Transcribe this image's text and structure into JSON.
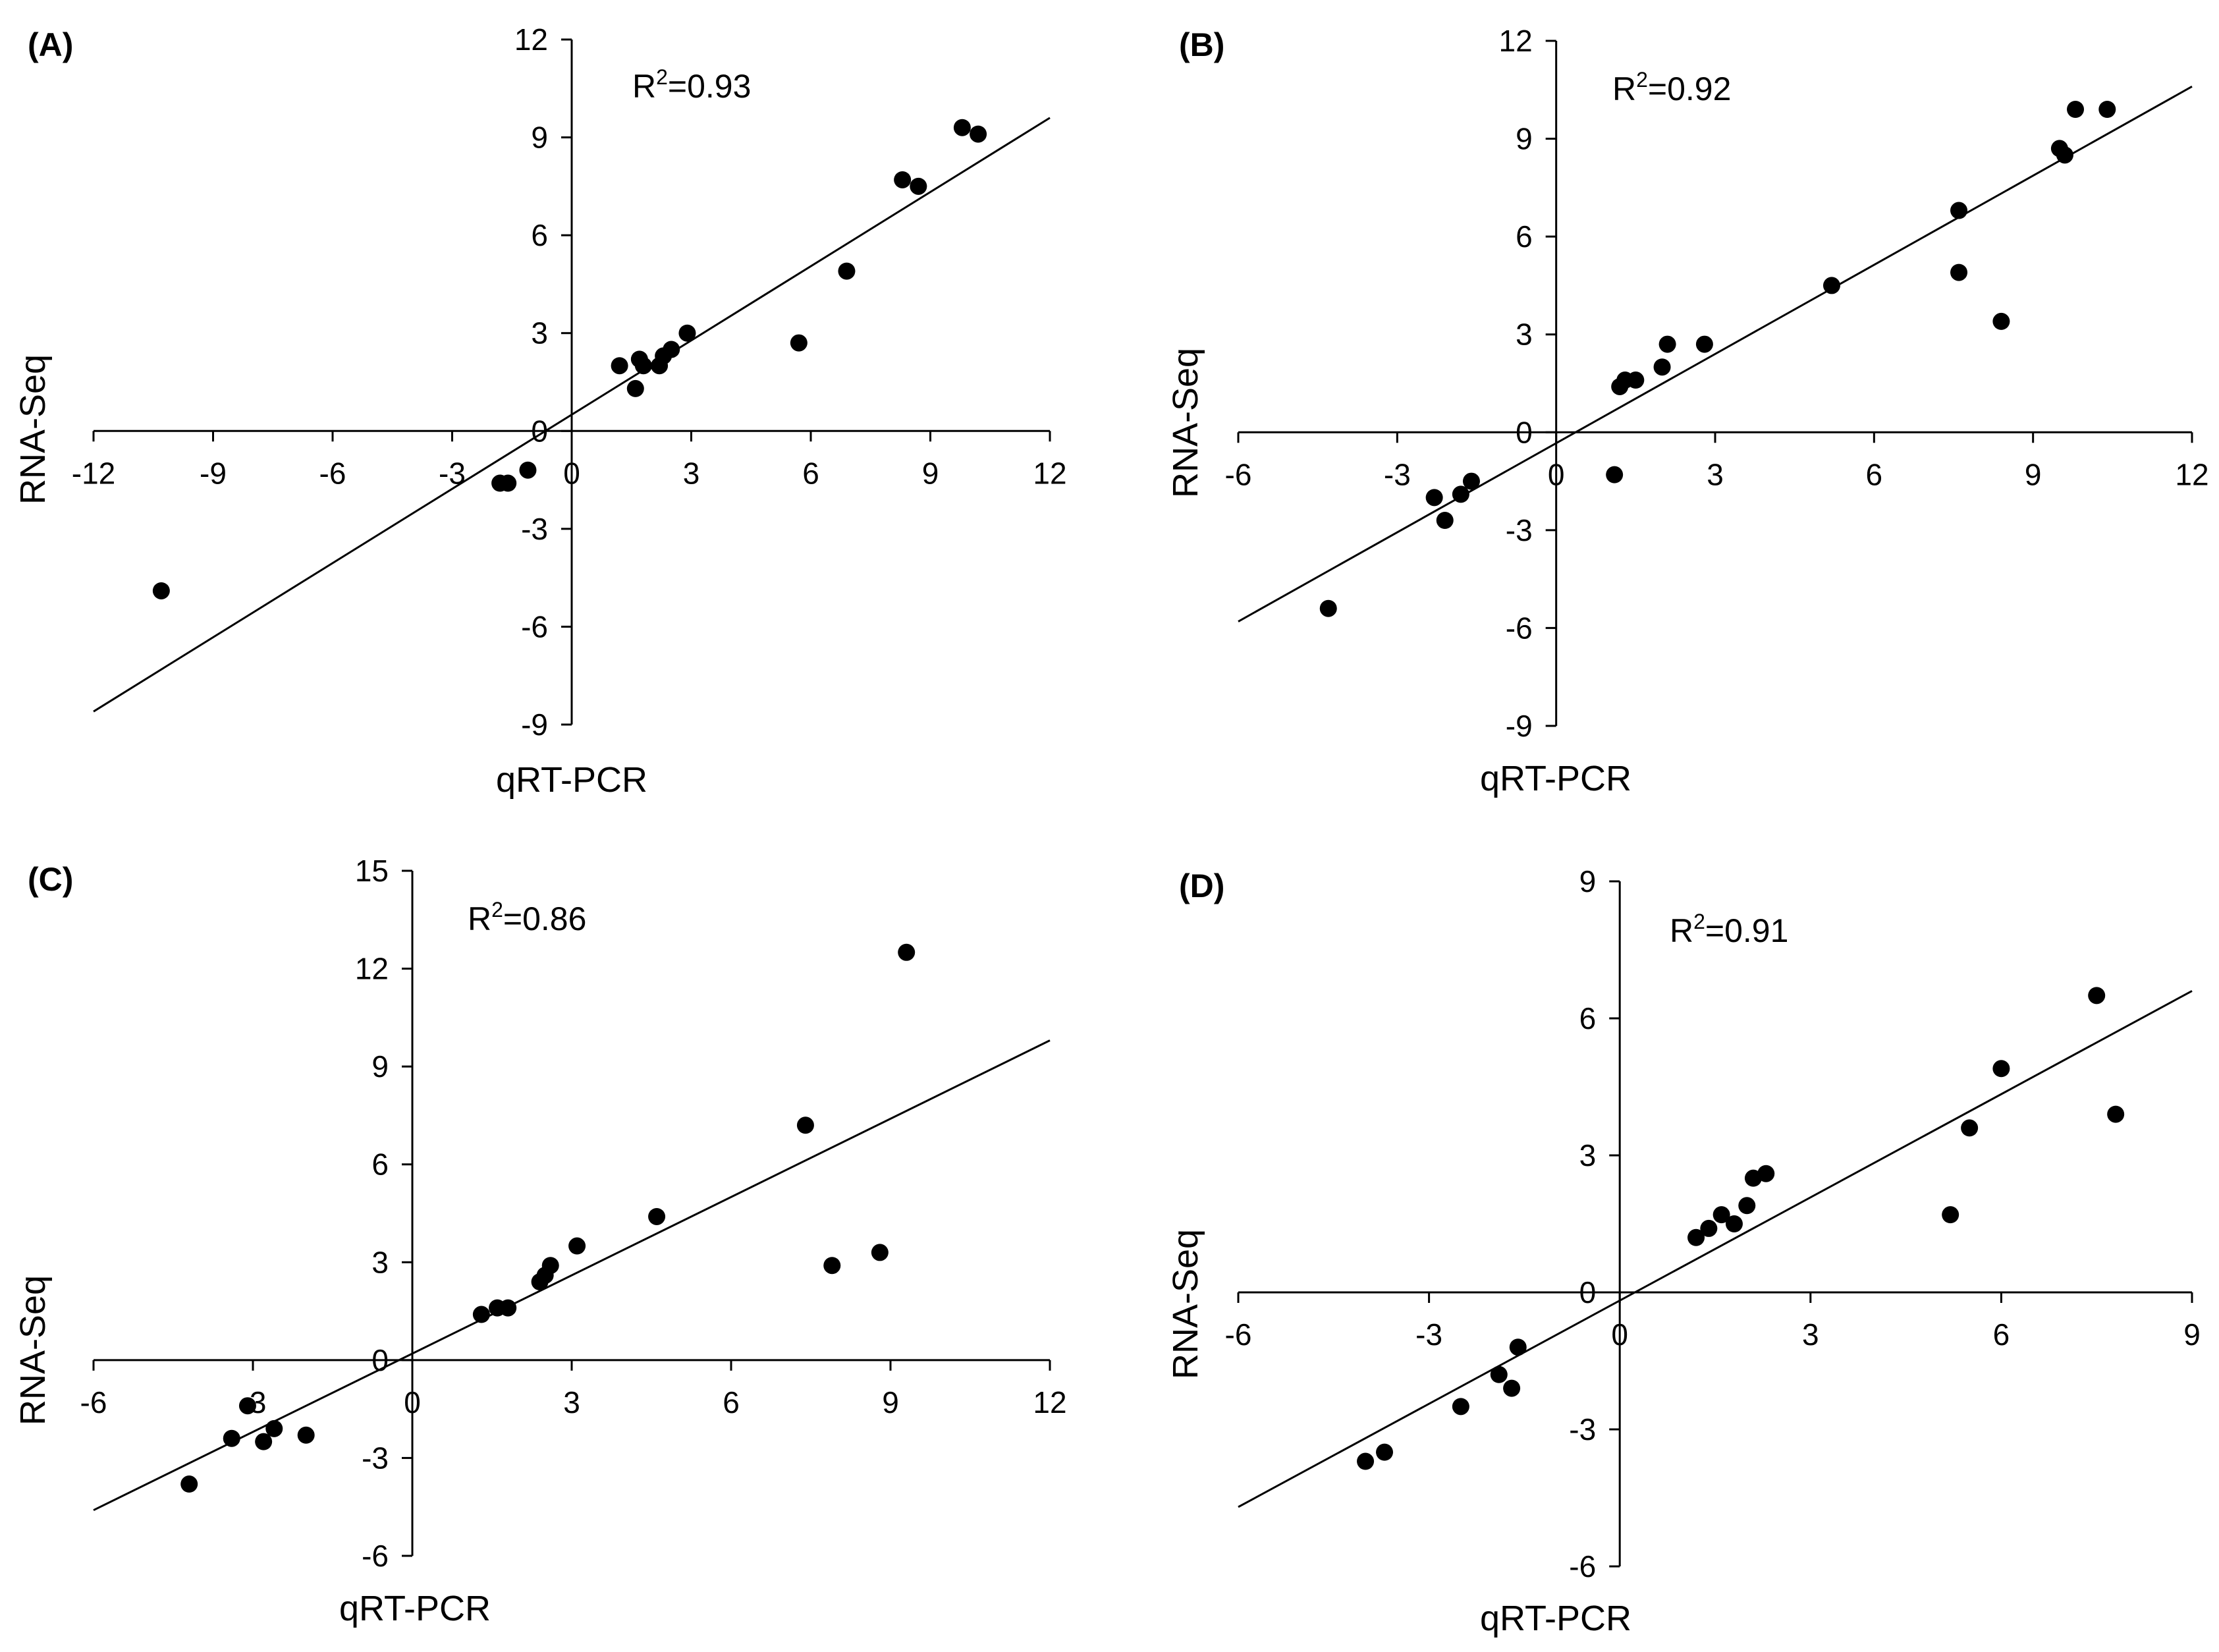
{
  "chart_data": [
    {
      "panel": "(A)",
      "type": "scatter",
      "annotation": {
        "prefix": "R",
        "sup": "2",
        "value": "=0.93"
      },
      "xlabel": "qRT-PCR",
      "ylabel": "RNA-Seq",
      "xlim": [
        -12,
        12
      ],
      "ylim": [
        -9,
        12
      ],
      "xticks": [
        -12,
        -9,
        -6,
        -3,
        0,
        3,
        6,
        9,
        12
      ],
      "yticks": [
        -9,
        -6,
        -3,
        0,
        3,
        6,
        9,
        12
      ],
      "trendline": [
        [
          -12,
          -8.6
        ],
        [
          12,
          9.6
        ]
      ],
      "points": [
        [
          -10.3,
          -4.9
        ],
        [
          -1.8,
          -1.6
        ],
        [
          -1.6,
          -1.6
        ],
        [
          -1.1,
          -1.2
        ],
        [
          1.2,
          2.0
        ],
        [
          1.6,
          1.3
        ],
        [
          1.7,
          2.2
        ],
        [
          1.8,
          2.0
        ],
        [
          2.2,
          2.0
        ],
        [
          2.3,
          2.3
        ],
        [
          2.5,
          2.5
        ],
        [
          2.9,
          3.0
        ],
        [
          5.7,
          2.7
        ],
        [
          6.9,
          4.9
        ],
        [
          8.3,
          7.7
        ],
        [
          8.7,
          7.5
        ],
        [
          9.8,
          9.3
        ],
        [
          10.2,
          9.1
        ]
      ]
    },
    {
      "panel": "(B)",
      "type": "scatter",
      "annotation": {
        "prefix": "R",
        "sup": "2",
        "value": "=0.92"
      },
      "xlabel": "qRT-PCR",
      "ylabel": "RNA-Seq",
      "xlim": [
        -6,
        12
      ],
      "ylim": [
        -9,
        12
      ],
      "xticks": [
        -6,
        -3,
        0,
        3,
        6,
        9,
        12
      ],
      "yticks": [
        -9,
        -6,
        -3,
        0,
        3,
        6,
        9,
        12
      ],
      "trendline": [
        [
          -6,
          -5.8
        ],
        [
          12,
          10.6
        ]
      ],
      "points": [
        [
          -4.3,
          -5.4
        ],
        [
          -2.3,
          -2.0
        ],
        [
          -2.1,
          -2.7
        ],
        [
          -1.8,
          -1.9
        ],
        [
          -1.6,
          -1.5
        ],
        [
          1.1,
          -1.3
        ],
        [
          1.2,
          1.4
        ],
        [
          1.3,
          1.6
        ],
        [
          1.5,
          1.6
        ],
        [
          2.0,
          2.0
        ],
        [
          2.1,
          2.7
        ],
        [
          2.8,
          2.7
        ],
        [
          5.2,
          4.5
        ],
        [
          7.6,
          6.8
        ],
        [
          7.6,
          4.9
        ],
        [
          8.4,
          3.4
        ],
        [
          9.5,
          8.7
        ],
        [
          9.6,
          8.5
        ],
        [
          9.8,
          9.9
        ],
        [
          10.4,
          9.9
        ]
      ]
    },
    {
      "panel": "(C)",
      "type": "scatter",
      "annotation": {
        "prefix": "R",
        "sup": "2",
        "value": "=0.86"
      },
      "xlabel": "qRT-PCR",
      "ylabel": "RNA-Seq",
      "xlim": [
        -6,
        12
      ],
      "ylim": [
        -6,
        15
      ],
      "xticks": [
        -6,
        -3,
        0,
        3,
        6,
        9,
        12
      ],
      "yticks": [
        -6,
        -3,
        0,
        3,
        6,
        9,
        12,
        15
      ],
      "trendline": [
        [
          -6,
          -4.6
        ],
        [
          12,
          9.8
        ]
      ],
      "points": [
        [
          -4.2,
          -3.8
        ],
        [
          -3.4,
          -2.4
        ],
        [
          -3.1,
          -1.4
        ],
        [
          -2.8,
          -2.5
        ],
        [
          -2.6,
          -2.1
        ],
        [
          -2.0,
          -2.3
        ],
        [
          1.3,
          1.4
        ],
        [
          1.6,
          1.6
        ],
        [
          1.8,
          1.6
        ],
        [
          2.4,
          2.4
        ],
        [
          2.5,
          2.6
        ],
        [
          2.6,
          2.9
        ],
        [
          3.1,
          3.5
        ],
        [
          4.6,
          4.4
        ],
        [
          7.4,
          7.2
        ],
        [
          7.9,
          2.9
        ],
        [
          8.8,
          3.3
        ],
        [
          9.3,
          12.5
        ]
      ]
    },
    {
      "panel": "(D)",
      "type": "scatter",
      "annotation": {
        "prefix": "R",
        "sup": "2",
        "value": "=0.91"
      },
      "xlabel": "qRT-PCR",
      "ylabel": "RNA-Seq",
      "xlim": [
        -6,
        9
      ],
      "ylim": [
        -6,
        9
      ],
      "xticks": [
        -6,
        -3,
        0,
        3,
        6,
        9
      ],
      "yticks": [
        -6,
        -3,
        0,
        3,
        6,
        9
      ],
      "trendline": [
        [
          -6,
          -4.7
        ],
        [
          9,
          6.6
        ]
      ],
      "points": [
        [
          -4.0,
          -3.7
        ],
        [
          -3.7,
          -3.5
        ],
        [
          -2.5,
          -2.5
        ],
        [
          -1.9,
          -1.8
        ],
        [
          -1.7,
          -2.1
        ],
        [
          -1.6,
          -1.2
        ],
        [
          1.2,
          1.2
        ],
        [
          1.4,
          1.4
        ],
        [
          1.6,
          1.7
        ],
        [
          1.8,
          1.5
        ],
        [
          2.0,
          1.9
        ],
        [
          2.1,
          2.5
        ],
        [
          2.3,
          2.6
        ],
        [
          5.2,
          1.7
        ],
        [
          5.5,
          3.6
        ],
        [
          6.0,
          4.9
        ],
        [
          7.5,
          6.5
        ],
        [
          7.8,
          3.9
        ]
      ]
    }
  ]
}
